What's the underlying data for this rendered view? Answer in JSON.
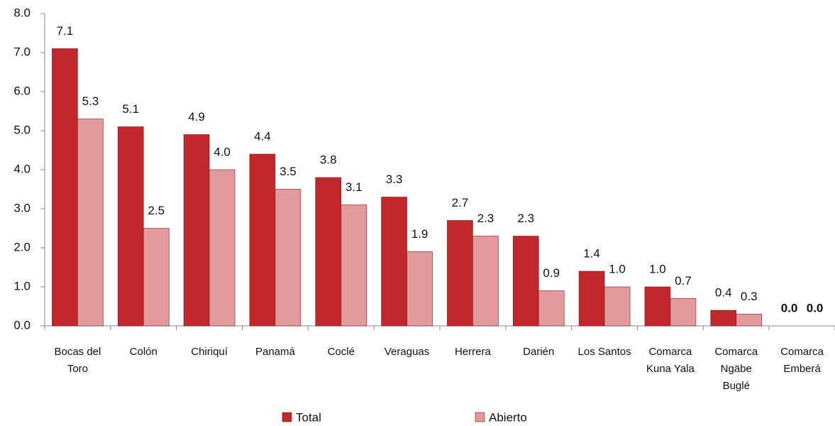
{
  "chart_data": {
    "type": "bar",
    "categories": [
      "Bocas del Toro",
      "Colón",
      "Chiriquí",
      "Panamá",
      "Coclé",
      "Veraguas",
      "Herrera",
      "Darién",
      "Los Santos",
      "Comarca Kuna Yala",
      "Comarca Ngäbe Buglé",
      "Comarca Emberá"
    ],
    "series": [
      {
        "name": "Total",
        "color": "#c0282c",
        "values": [
          7.1,
          5.1,
          4.9,
          4.4,
          3.8,
          3.3,
          2.7,
          2.3,
          1.4,
          1.0,
          0.4,
          0.0
        ],
        "value_labels": [
          "7.1",
          "5.1",
          "4.9",
          "4.4",
          "3.8",
          "3.3",
          "2.7",
          "2.3",
          "1.4",
          "1.0",
          "0.4",
          "0.0"
        ]
      },
      {
        "name": "Abierto",
        "color": "#e39a9c",
        "values": [
          5.3,
          2.5,
          4.0,
          3.5,
          3.1,
          1.9,
          2.3,
          0.9,
          1.0,
          0.7,
          0.3,
          0.0
        ],
        "value_labels": [
          "5.3",
          "2.5",
          "4.0",
          "3.5",
          "3.1",
          "1.9",
          "2.3",
          "0.9",
          "1.0",
          "0.7",
          "0.3",
          "0.0"
        ]
      }
    ],
    "ylim": [
      0,
      8
    ],
    "yticks": [
      {
        "value": 0,
        "label": "0.0"
      },
      {
        "value": 1,
        "label": "1.0"
      },
      {
        "value": 2,
        "label": "2.0"
      },
      {
        "value": 3,
        "label": "3.0"
      },
      {
        "value": 4,
        "label": "4.0"
      },
      {
        "value": 5,
        "label": "5.0"
      },
      {
        "value": 6,
        "label": "6.0"
      },
      {
        "value": 7,
        "label": "7.0"
      },
      {
        "value": 8,
        "label": "8.0"
      }
    ],
    "grid": false,
    "legend": "bottom"
  }
}
